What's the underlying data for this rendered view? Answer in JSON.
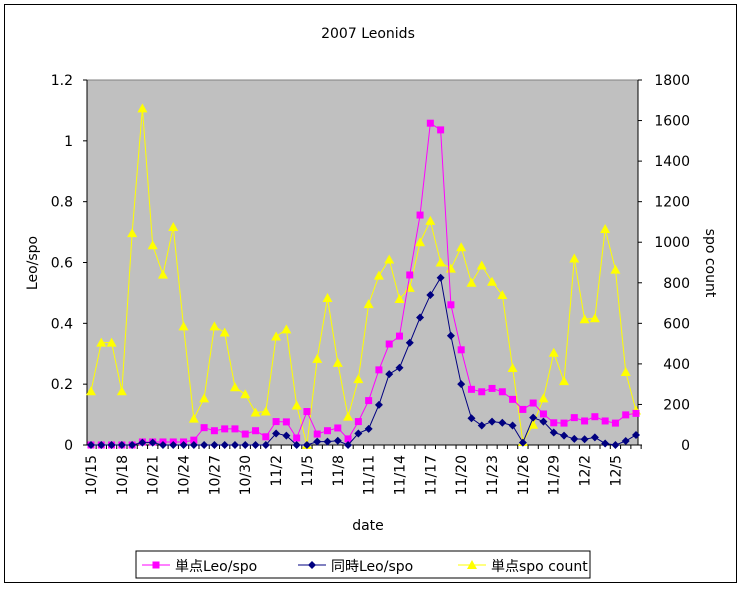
{
  "chart_data": {
    "type": "line",
    "title": "2007 Leonids",
    "xlabel": "date",
    "ylabel_left": "Leo/spo",
    "ylabel_right": "spo count",
    "ylim_left": [
      0,
      1.2
    ],
    "yticks_left": [
      "0",
      "0.2",
      "0.4",
      "0.6",
      "0.8",
      "1",
      "1.2"
    ],
    "ylim_right": [
      0,
      1800
    ],
    "yticks_right": [
      "0",
      "200",
      "400",
      "600",
      "800",
      "1000",
      "1200",
      "1400",
      "1600",
      "1800"
    ],
    "grid": false,
    "plot_background": "#c0c0c0",
    "legend_position": "bottom",
    "categories": [
      "10/15",
      "10/16",
      "10/17",
      "10/18",
      "10/19",
      "10/20",
      "10/21",
      "10/22",
      "10/23",
      "10/24",
      "10/25",
      "10/26",
      "10/27",
      "10/28",
      "10/29",
      "10/30",
      "10/31",
      "11/1",
      "11/2",
      "11/3",
      "11/4",
      "11/5",
      "11/6",
      "11/7",
      "11/8",
      "11/9",
      "11/10",
      "11/11",
      "11/12",
      "11/13",
      "11/14",
      "11/15",
      "11/16",
      "11/17",
      "11/18",
      "11/19",
      "11/20",
      "11/21",
      "11/22",
      "11/23",
      "11/24",
      "11/25",
      "11/26",
      "11/27",
      "11/28",
      "11/29",
      "11/30",
      "12/1",
      "12/2",
      "12/3",
      "12/4",
      "12/5",
      "12/6",
      "12/7"
    ],
    "tick_every": 3,
    "series": [
      {
        "name": "単点Leo/spo",
        "axis": "left",
        "color": "#ff00ff",
        "marker": "square",
        "values": [
          0,
          0,
          0,
          0,
          0,
          0.01,
          0.01,
          0.01,
          0.01,
          0.01,
          0.016,
          0.057,
          0.047,
          0.053,
          0.053,
          0.036,
          0.047,
          0.027,
          0.077,
          0.076,
          0.023,
          0.11,
          0.036,
          0.047,
          0.056,
          0.02,
          0.077,
          0.146,
          0.247,
          0.332,
          0.358,
          0.559,
          0.756,
          1.058,
          1.036,
          0.461,
          0.313,
          0.183,
          0.175,
          0.186,
          0.175,
          0.15,
          0.117,
          0.138,
          0.102,
          0.073,
          0.072,
          0.09,
          0.079,
          0.093,
          0.079,
          0.072,
          0.099,
          0.104
        ]
      },
      {
        "name": "同時Leo/spo",
        "axis": "left",
        "color": "#000080",
        "marker": "diamond",
        "values": [
          0,
          0,
          0,
          0,
          0,
          0.008,
          0.008,
          0,
          0,
          0,
          0,
          0,
          0,
          0,
          0,
          0,
          0,
          0,
          0.038,
          0.031,
          0,
          0,
          0.011,
          0.011,
          0.014,
          0,
          0.038,
          0.053,
          0.132,
          0.233,
          0.254,
          0.336,
          0.419,
          0.493,
          0.55,
          0.359,
          0.2,
          0.088,
          0.064,
          0.077,
          0.073,
          0.064,
          0.008,
          0.09,
          0.077,
          0.041,
          0.031,
          0.02,
          0.019,
          0.025,
          0.005,
          0,
          0.013,
          0.033
        ]
      },
      {
        "name": "単点spo count",
        "axis": "right",
        "color": "#ffff00",
        "marker": "triangle",
        "values": [
          265,
          505,
          505,
          265,
          1045,
          1660,
          985,
          840,
          1075,
          585,
          130,
          230,
          585,
          555,
          285,
          250,
          160,
          165,
          535,
          570,
          195,
          0,
          425,
          725,
          405,
          140,
          325,
          695,
          835,
          915,
          720,
          775,
          1000,
          1105,
          900,
          870,
          975,
          800,
          885,
          805,
          740,
          380,
          15,
          100,
          230,
          455,
          315,
          920,
          620,
          625,
          1065,
          865,
          360,
          170
        ]
      }
    ]
  }
}
